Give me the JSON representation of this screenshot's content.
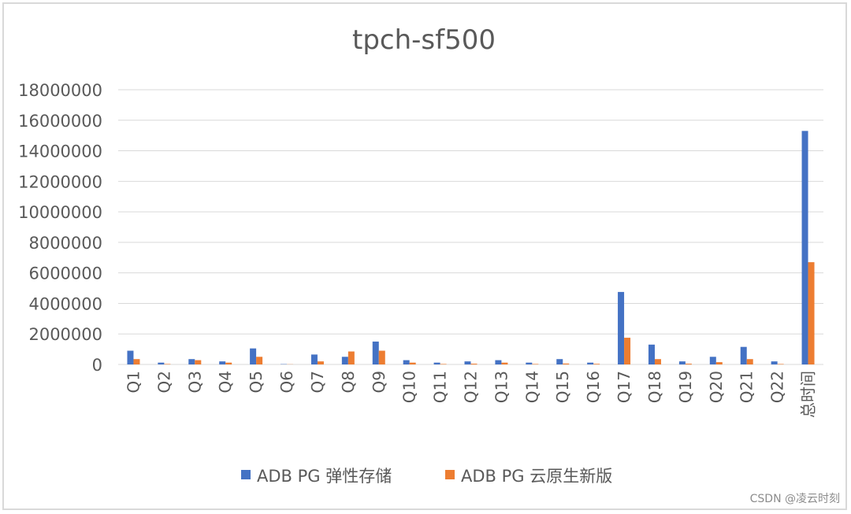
{
  "chart_data": {
    "type": "bar",
    "title": "tpch-sf500",
    "xlabel": "",
    "ylabel": "",
    "ylim": [
      0,
      18000000
    ],
    "yticks": [
      0,
      2000000,
      4000000,
      6000000,
      8000000,
      10000000,
      12000000,
      14000000,
      16000000,
      18000000
    ],
    "grid": true,
    "legend_position": "bottom",
    "categories": [
      "Q1",
      "Q2",
      "Q3",
      "Q4",
      "Q5",
      "Q6",
      "Q7",
      "Q8",
      "Q9",
      "Q10",
      "Q11",
      "Q12",
      "Q13",
      "Q14",
      "Q15",
      "Q16",
      "Q17",
      "Q18",
      "Q19",
      "Q20",
      "Q21",
      "Q22",
      "总时间"
    ],
    "series": [
      {
        "name": "ADB PG 弹性存储",
        "color": "#4472C4",
        "values": [
          900000,
          120000,
          350000,
          200000,
          1050000,
          20000,
          650000,
          500000,
          1500000,
          280000,
          120000,
          200000,
          280000,
          120000,
          350000,
          120000,
          4750000,
          1300000,
          200000,
          500000,
          1150000,
          200000,
          15300000
        ]
      },
      {
        "name": "ADB PG 云原生新版",
        "color": "#ED7D31",
        "values": [
          350000,
          30000,
          280000,
          120000,
          500000,
          10000,
          200000,
          850000,
          900000,
          120000,
          30000,
          50000,
          120000,
          30000,
          60000,
          40000,
          1750000,
          350000,
          50000,
          150000,
          350000,
          30000,
          6700000
        ]
      }
    ]
  },
  "watermark": "CSDN @凌云时刻"
}
